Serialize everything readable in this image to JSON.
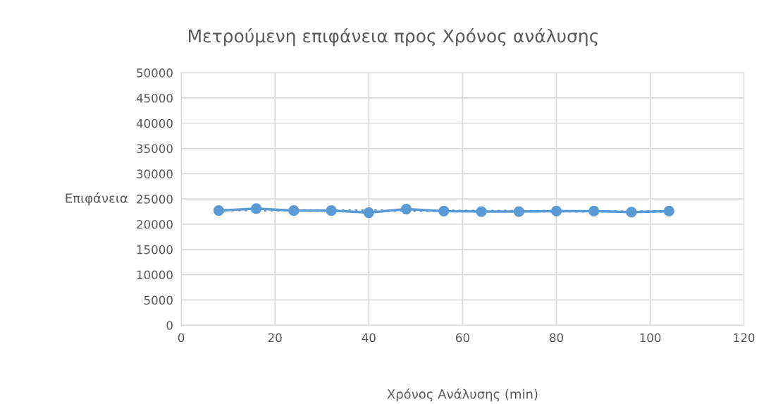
{
  "chart_data": {
    "type": "line",
    "title": "Μετρούμενη επιφάνεια προς Χρόνος ανάλυσης",
    "xlabel": "Χρόνος Ανάλυσης (min)",
    "ylabel": "Επιφάνεια",
    "series": [
      {
        "color": "#5b9bd5",
        "marker": "circle",
        "line_style": "solid",
        "x": [
          8,
          16,
          24,
          32,
          40,
          48,
          56,
          64,
          72,
          80,
          88,
          96,
          104
        ],
        "values": [
          22700,
          23100,
          22700,
          22700,
          22300,
          23000,
          22600,
          22500,
          22500,
          22600,
          22600,
          22400,
          22600
        ]
      },
      {
        "color": "#5b9bd5",
        "marker": "none",
        "line_style": "dotted",
        "x": [
          8,
          104
        ],
        "values": [
          22800,
          22500
        ]
      }
    ],
    "xlim": [
      0,
      120
    ],
    "xticks": [
      0,
      20,
      40,
      60,
      80,
      100,
      120
    ],
    "ylim": [
      0,
      50000
    ],
    "yticks": [
      0,
      5000,
      10000,
      15000,
      20000,
      25000,
      30000,
      35000,
      40000,
      45000,
      50000
    ],
    "grid": true
  }
}
